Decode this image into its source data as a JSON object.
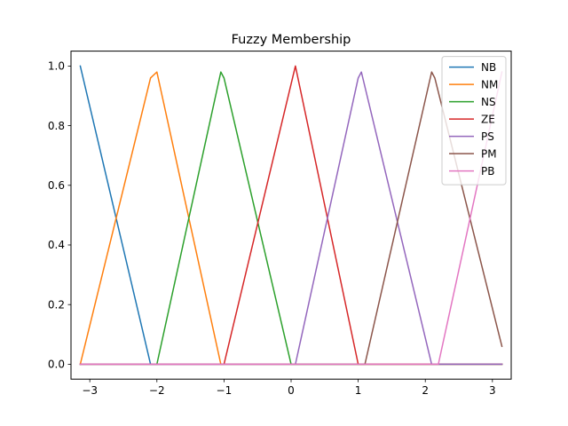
{
  "chart_data": {
    "type": "line",
    "title": "Fuzzy Membership",
    "xlabel": "",
    "ylabel": "",
    "xlim": [
      -3.28,
      3.28
    ],
    "ylim": [
      -0.05,
      1.05
    ],
    "xticks": [
      -3,
      -2,
      -1,
      0,
      1,
      2,
      3
    ],
    "xtick_labels": [
      "−3",
      "−2",
      "−1",
      "0",
      "1",
      "2",
      "3"
    ],
    "yticks": [
      0.0,
      0.2,
      0.4,
      0.6,
      0.8,
      1.0
    ],
    "ytick_labels": [
      "0.0",
      "0.2",
      "0.4",
      "0.6",
      "0.8",
      "1.0"
    ],
    "grid": false,
    "legend_position": "top-right",
    "series": [
      {
        "name": "NB",
        "color": "#1f77b4",
        "x": [
          -3.1416,
          -2.0944,
          -2.0,
          3.1416
        ],
        "y": [
          1.0,
          0.0,
          0.0,
          0.0
        ]
      },
      {
        "name": "NM",
        "color": "#ff7f0e",
        "x": [
          -3.1416,
          -2.0944,
          -2.0,
          -1.0472,
          -1.0,
          3.1416
        ],
        "y": [
          0.0,
          0.96,
          0.98,
          0.0,
          0.0,
          0.0
        ]
      },
      {
        "name": "NS",
        "color": "#2ca02c",
        "x": [
          -3.1416,
          -2.0944,
          -2.0,
          -1.0472,
          -1.0,
          0.0,
          0.0642,
          3.1416
        ],
        "y": [
          0.0,
          0.0,
          0.0,
          0.98,
          0.96,
          0.0,
          0.0,
          0.0
        ]
      },
      {
        "name": "ZE",
        "color": "#d62728",
        "x": [
          -3.1416,
          -1.0472,
          -1.0,
          0.0642,
          1.0,
          1.0472,
          3.1416
        ],
        "y": [
          0.0,
          0.0,
          0.0,
          1.0,
          0.0,
          0.0,
          0.0
        ]
      },
      {
        "name": "PS",
        "color": "#9467bd",
        "x": [
          -3.1416,
          0.0642,
          1.0,
          1.0472,
          2.0944,
          2.1416,
          3.1416
        ],
        "y": [
          0.0,
          0.0,
          0.96,
          0.98,
          0.0,
          0.0,
          0.0
        ]
      },
      {
        "name": "PM",
        "color": "#8c564b",
        "x": [
          -3.1416,
          1.0472,
          1.1,
          2.0944,
          2.1416,
          3.1416
        ],
        "y": [
          0.0,
          0.0,
          0.0,
          0.98,
          0.96,
          0.06
        ]
      },
      {
        "name": "PB",
        "color": "#e377c2",
        "x": [
          -3.1416,
          2.1416,
          2.1944,
          3.1416
        ],
        "y": [
          0.0,
          0.0,
          0.0,
          0.98
        ]
      }
    ]
  }
}
